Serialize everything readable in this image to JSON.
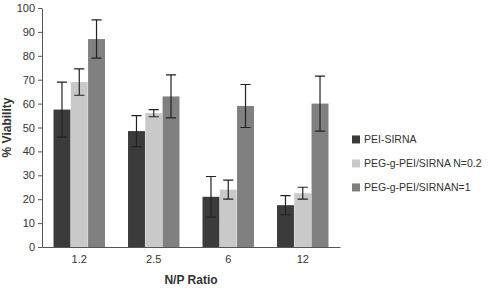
{
  "chart_data": {
    "type": "bar",
    "x_label": "N/P Ratio",
    "y_label": "% Viability",
    "categories": [
      "1.2",
      "2.5",
      "6",
      "12"
    ],
    "series": [
      {
        "name": "PEI-SIRNA",
        "color": "#3b3b3b",
        "values": [
          57.5,
          48.5,
          21,
          17.5
        ],
        "errors": [
          11.5,
          6.5,
          8.5,
          4
        ]
      },
      {
        "name": "PEG-g-PEI/SIRNA N=0.2",
        "color": "#c9c9c9",
        "values": [
          69,
          56,
          24,
          22.5
        ],
        "errors": [
          5.5,
          1.5,
          4,
          2.5
        ]
      },
      {
        "name": "PEG-g-PEI/SIRNAN=1",
        "color": "#808080",
        "values": [
          87,
          63,
          59,
          60
        ],
        "errors": [
          8,
          9,
          9,
          11.5
        ]
      }
    ],
    "ylim": [
      0,
      100
    ],
    "yticks": [
      0,
      10,
      20,
      30,
      40,
      50,
      60,
      70,
      80,
      90,
      100
    ],
    "grid": false,
    "legend": "right"
  }
}
